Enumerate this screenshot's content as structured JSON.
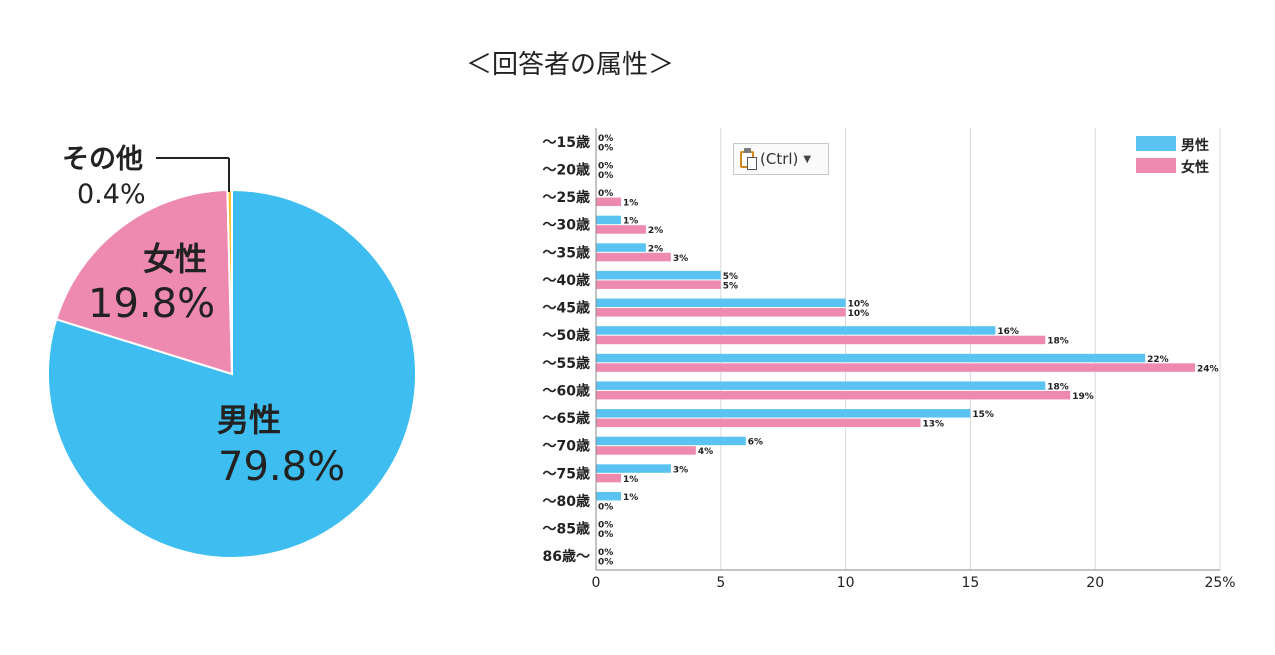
{
  "title": "＜回答者の属性＞",
  "paste_button": {
    "label": "(Ctrl)",
    "icon": "clipboard-paste-icon",
    "caret_icon": "caret-down-icon"
  },
  "colors": {
    "male": "#3dbdf0",
    "female": "#ee8ab0",
    "other": "#f5c238"
  },
  "chart_data": [
    {
      "type": "pie",
      "title": "",
      "slices": [
        {
          "name": "男性",
          "value": 79.8,
          "label": "79.8%",
          "color": "#3dbdf0"
        },
        {
          "name": "女性",
          "value": 19.8,
          "label": "19.8%",
          "color": "#ee8ab0"
        },
        {
          "name": "その他",
          "value": 0.4,
          "label": "0.4%",
          "color": "#f5c238"
        }
      ]
    },
    {
      "type": "bar",
      "orientation": "horizontal",
      "categories": [
        "～15歳",
        "～20歳",
        "～25歳",
        "～30歳",
        "～35歳",
        "～40歳",
        "～45歳",
        "～50歳",
        "～55歳",
        "～60歳",
        "～65歳",
        "～70歳",
        "～75歳",
        "～80歳",
        "～85歳",
        "86歳～"
      ],
      "series": [
        {
          "name": "男性",
          "color": "#5bc3f1",
          "values": [
            0,
            0,
            0,
            1,
            2,
            5,
            10,
            16,
            22,
            18,
            15,
            6,
            3,
            1,
            0,
            0
          ]
        },
        {
          "name": "女性",
          "color": "#ee8ab0",
          "values": [
            0,
            0,
            1,
            2,
            3,
            5,
            10,
            18,
            24,
            19,
            13,
            4,
            1,
            0,
            0,
            0
          ]
        }
      ],
      "xlim": [
        0,
        25
      ],
      "xticks": [
        "0",
        "5",
        "10",
        "15",
        "20",
        "25%"
      ],
      "xtick_values": [
        0,
        5,
        10,
        15,
        20,
        25
      ],
      "value_suffix": "%",
      "grid": true,
      "legend": "top-right"
    }
  ]
}
